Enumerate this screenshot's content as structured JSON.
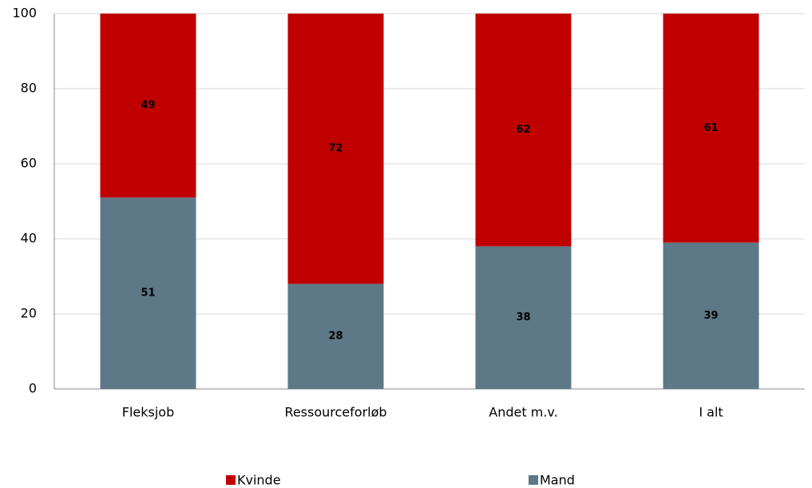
{
  "chart_data": {
    "type": "stacked_bar",
    "categories": [
      "Fleksjob",
      "Ressourceforløb",
      "Andet m.v.",
      "I alt"
    ],
    "series": [
      {
        "name": "Mand",
        "color": "#5d7887",
        "values": [
          51,
          28,
          38,
          39
        ]
      },
      {
        "name": "Kvinde",
        "color": "#c00000",
        "values": [
          49,
          72,
          62,
          61
        ]
      }
    ],
    "ylim": [
      0,
      100
    ],
    "yticks": [
      0,
      20,
      40,
      60,
      80,
      100
    ],
    "grid": true,
    "legend": "bottom"
  }
}
